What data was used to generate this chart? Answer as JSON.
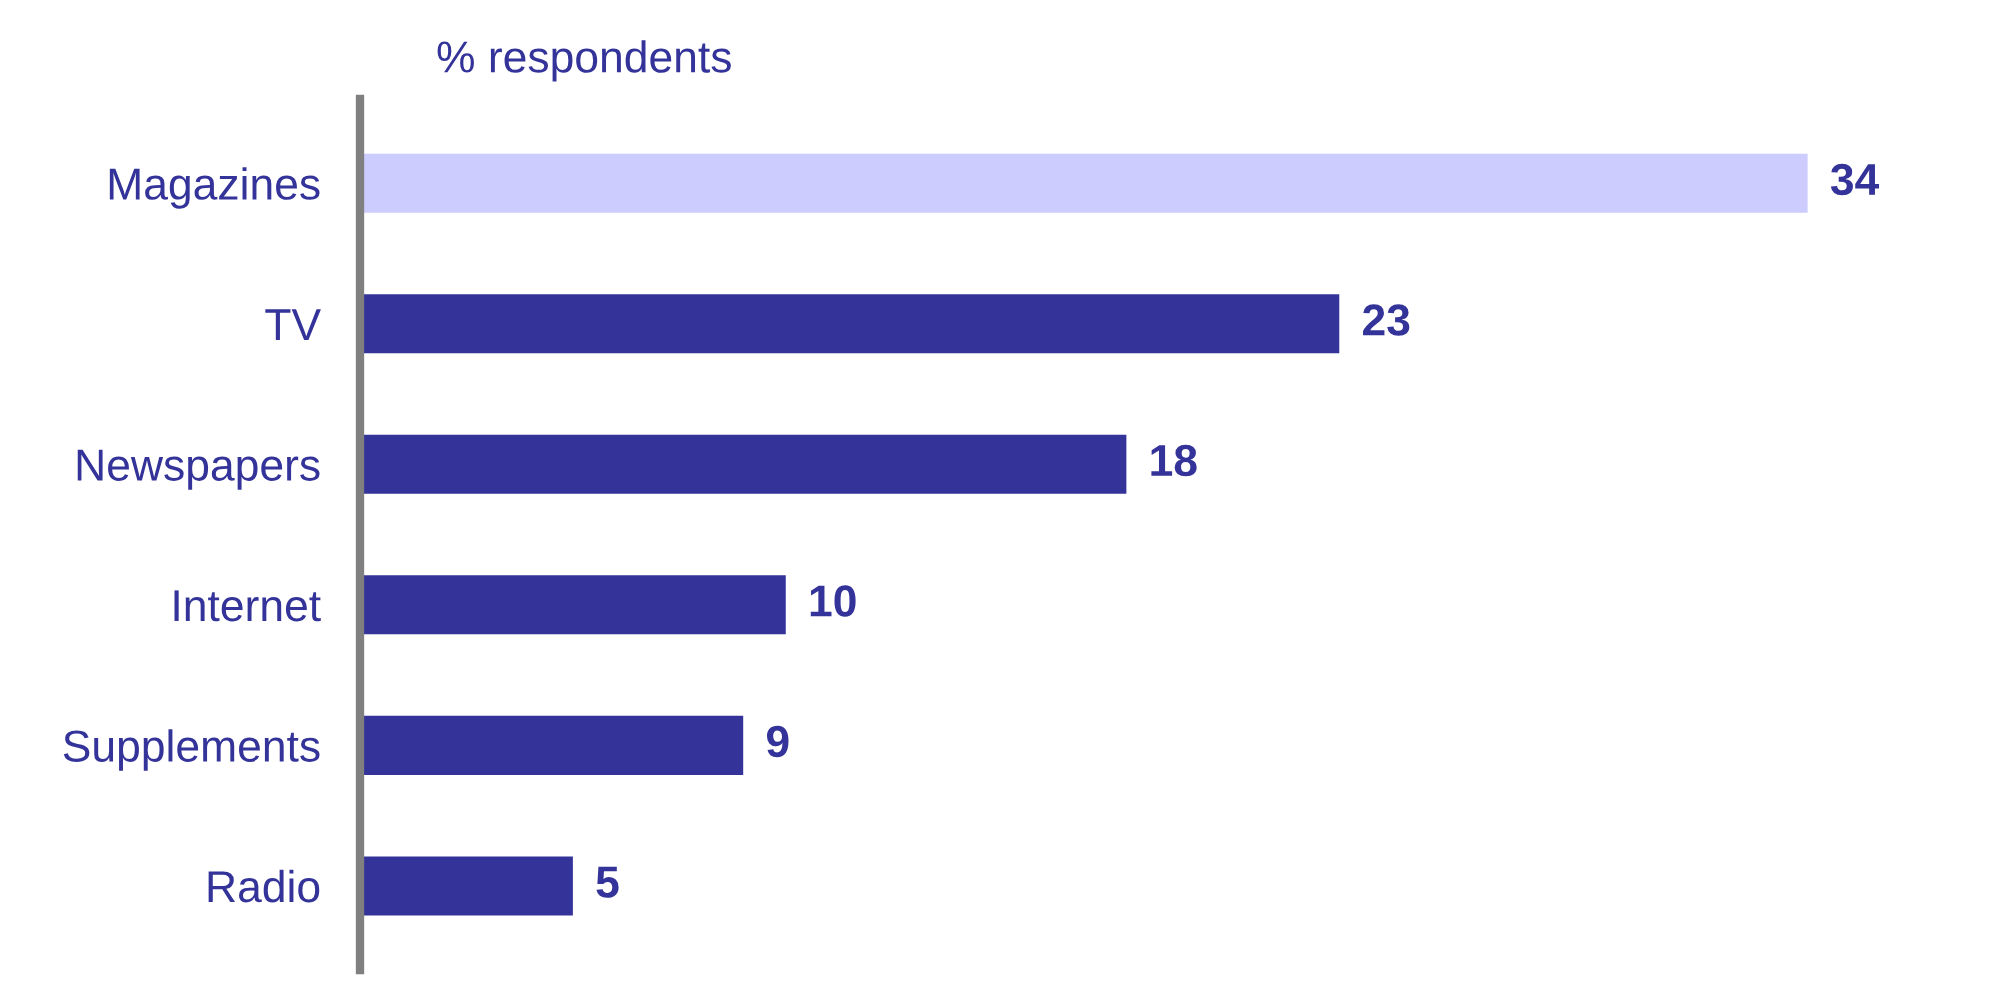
{
  "chart_data": {
    "type": "bar",
    "orientation": "horizontal",
    "title": "% respondents",
    "categories": [
      "Magazines",
      "TV",
      "Newspapers",
      "Internet",
      "Supplements",
      "Radio"
    ],
    "values": [
      34,
      23,
      18,
      10,
      9,
      5
    ],
    "colors": [
      "#ccccff",
      "#333399",
      "#333399",
      "#333399",
      "#333399",
      "#333399"
    ],
    "data_labels": true,
    "grid": false,
    "legend": false
  }
}
